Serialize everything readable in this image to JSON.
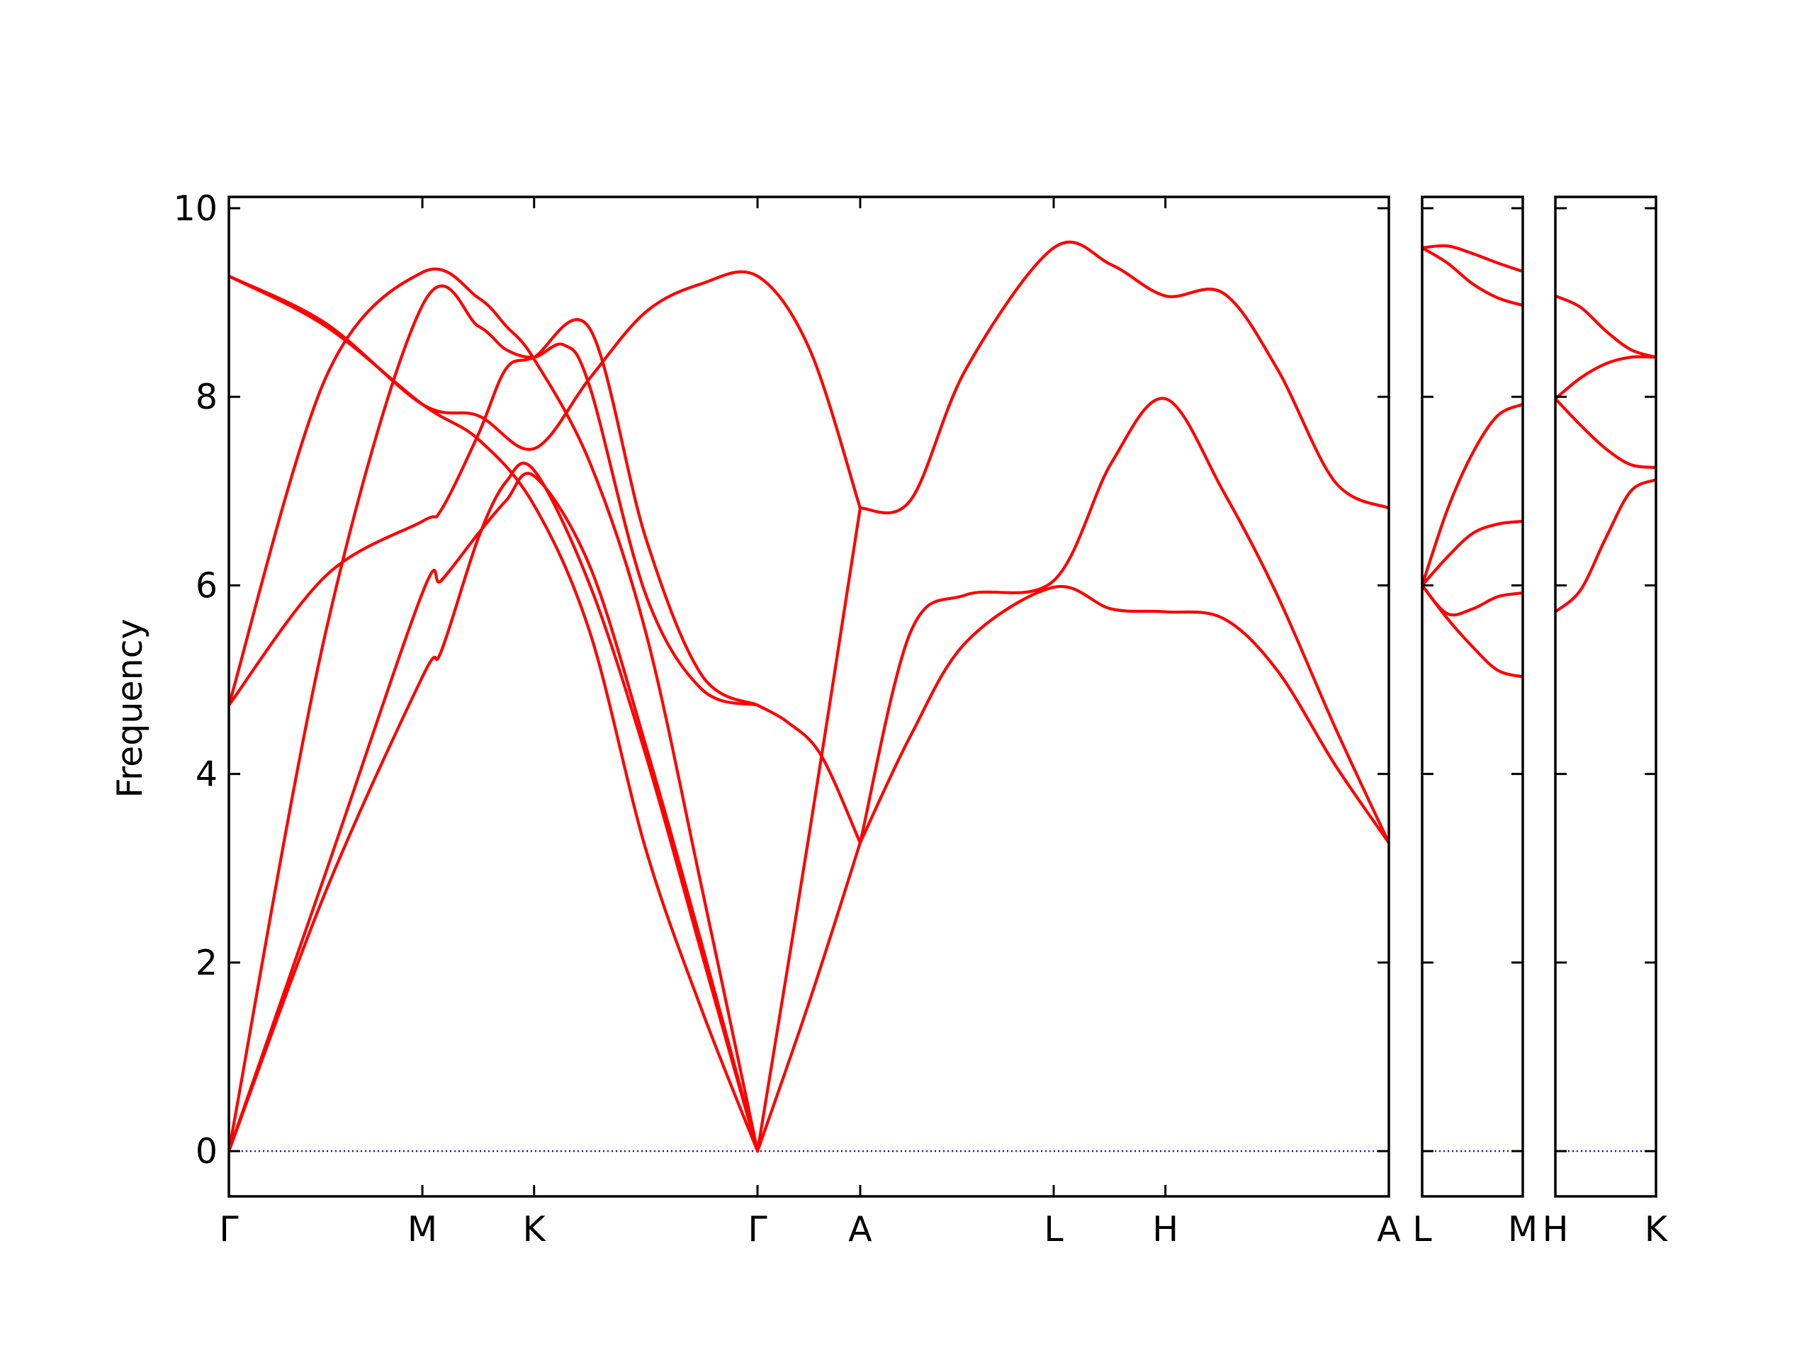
{
  "chart_data": {
    "type": "line",
    "title": "",
    "ylabel": "Frequency",
    "ylim": [
      -0.48,
      10.12
    ],
    "yticks": [
      0,
      2,
      4,
      6,
      8,
      10
    ],
    "y_tick_labels": [
      "0",
      "2",
      "4",
      "6",
      "8",
      "10"
    ],
    "grid": false,
    "band_color": "#ff0000",
    "zero_line_color": "#0000ff",
    "segments": [
      {
        "labels": [
          "Γ",
          "M",
          "K",
          "Γ",
          "A",
          "L",
          "H",
          "A"
        ],
        "positions": [
          0,
          1.732,
          2.732,
          4.732,
          5.651,
          7.383,
          8.383,
          10.383
        ],
        "x_range": [
          0,
          10.383
        ],
        "bands": [
          [
            [
              0,
              0
            ],
            [
              0.866,
              2.75
            ],
            [
              1.732,
              5.03
            ],
            [
              1.9,
              5.3
            ],
            [
              2.232,
              6.5
            ],
            [
              2.482,
              7.1
            ],
            [
              2.732,
              7.22
            ],
            [
              3.232,
              6.0
            ],
            [
              3.732,
              4.2
            ],
            [
              4.232,
              2.1
            ],
            [
              4.732,
              0
            ]
          ],
          [
            [
              0,
              0
            ],
            [
              0.866,
              2.95
            ],
            [
              1.732,
              5.92
            ],
            [
              1.9,
              6.05
            ],
            [
              2.232,
              6.55
            ],
            [
              2.482,
              6.9
            ],
            [
              2.732,
              7.16
            ],
            [
              3.232,
              6.2
            ],
            [
              3.732,
              4.3
            ],
            [
              4.232,
              2.2
            ],
            [
              4.732,
              0
            ]
          ],
          [
            [
              0,
              0
            ],
            [
              0.866,
              5.5
            ],
            [
              1.732,
              8.97
            ],
            [
              2.232,
              8.75
            ],
            [
              2.482,
              8.5
            ],
            [
              2.732,
              8.42
            ],
            [
              3.0,
              8.55
            ],
            [
              3.232,
              8.1
            ],
            [
              3.732,
              5.9
            ],
            [
              4.232,
              4.9
            ],
            [
              4.732,
              4.73
            ]
          ],
          [
            [
              0,
              4.73
            ],
            [
              0.866,
              6.1
            ],
            [
              1.732,
              6.68
            ],
            [
              1.9,
              6.8
            ],
            [
              2.232,
              7.6
            ],
            [
              2.482,
              8.3
            ],
            [
              2.732,
              8.42
            ],
            [
              3.232,
              8.72
            ],
            [
              3.732,
              6.5
            ],
            [
              4.232,
              5.05
            ],
            [
              4.732,
              4.73
            ]
          ],
          [
            [
              0,
              4.73
            ],
            [
              0.866,
              8.2
            ],
            [
              1.732,
              9.32
            ],
            [
              2.232,
              9.05
            ],
            [
              2.482,
              8.75
            ],
            [
              2.732,
              8.4
            ],
            [
              3.232,
              7.3
            ],
            [
              3.732,
              5.5
            ],
            [
              4.232,
              2.8
            ],
            [
              4.732,
              0
            ]
          ],
          [
            [
              0,
              9.28
            ],
            [
              0.866,
              8.75
            ],
            [
              1.732,
              7.92
            ],
            [
              2.232,
              7.55
            ],
            [
              2.732,
              6.85
            ],
            [
              3.232,
              5.5
            ],
            [
              3.732,
              3.2
            ],
            [
              4.232,
              1.5
            ],
            [
              4.732,
              0
            ]
          ],
          [
            [
              0,
              9.28
            ],
            [
              0.866,
              8.78
            ],
            [
              1.732,
              7.92
            ],
            [
              2.232,
              7.8
            ],
            [
              2.732,
              7.45
            ],
            [
              3.232,
              8.2
            ],
            [
              3.732,
              8.9
            ],
            [
              4.232,
              9.2
            ],
            [
              4.732,
              9.28
            ],
            [
              5.2,
              8.5
            ],
            [
              5.651,
              6.82
            ]
          ],
          [
            [
              4.732,
              0
            ],
            [
              5.2,
              1.6
            ],
            [
              5.651,
              3.27
            ]
          ],
          [
            [
              4.732,
              0
            ],
            [
              5.2,
              3.4
            ],
            [
              5.651,
              6.82
            ]
          ],
          [
            [
              4.732,
              4.73
            ],
            [
              5.0,
              4.55
            ],
            [
              5.3,
              4.2
            ],
            [
              5.651,
              3.27
            ]
          ],
          [
            [
              5.651,
              3.27
            ],
            [
              6.1,
              5.5
            ],
            [
              6.6,
              5.9
            ],
            [
              7.383,
              6.05
            ],
            [
              7.9,
              7.3
            ],
            [
              8.383,
              7.98
            ],
            [
              8.9,
              7.0
            ],
            [
              9.383,
              5.9
            ],
            [
              9.9,
              4.5
            ],
            [
              10.383,
              3.27
            ]
          ],
          [
            [
              5.651,
              3.27
            ],
            [
              6.1,
              4.4
            ],
            [
              6.6,
              5.4
            ],
            [
              7.383,
              5.98
            ],
            [
              7.9,
              5.75
            ],
            [
              8.383,
              5.72
            ],
            [
              8.9,
              5.65
            ],
            [
              9.383,
              5.1
            ],
            [
              9.9,
              4.1
            ],
            [
              10.383,
              3.27
            ]
          ],
          [
            [
              5.651,
              6.82
            ],
            [
              6.1,
              6.9
            ],
            [
              6.6,
              8.3
            ],
            [
              7.383,
              9.58
            ],
            [
              7.9,
              9.4
            ],
            [
              8.383,
              9.07
            ],
            [
              8.9,
              9.1
            ],
            [
              9.383,
              8.3
            ],
            [
              9.9,
              7.1
            ],
            [
              10.383,
              6.82
            ]
          ]
        ],
        "zero_line": true
      },
      {
        "labels": [
          "L",
          "M"
        ],
        "positions": [
          0,
          1
        ],
        "x_range": [
          0,
          1
        ],
        "bands": [
          [
            [
              0,
              9.58
            ],
            [
              0.25,
              9.6
            ],
            [
              0.5,
              9.52
            ],
            [
              0.75,
              9.42
            ],
            [
              1,
              9.33
            ]
          ],
          [
            [
              0,
              9.58
            ],
            [
              0.25,
              9.42
            ],
            [
              0.5,
              9.2
            ],
            [
              0.75,
              9.05
            ],
            [
              1,
              8.97
            ]
          ],
          [
            [
              0,
              6.0
            ],
            [
              0.25,
              6.8
            ],
            [
              0.5,
              7.4
            ],
            [
              0.75,
              7.8
            ],
            [
              1,
              7.92
            ]
          ],
          [
            [
              0,
              6.0
            ],
            [
              0.25,
              6.3
            ],
            [
              0.5,
              6.55
            ],
            [
              0.75,
              6.65
            ],
            [
              1,
              6.68
            ]
          ],
          [
            [
              0,
              6.0
            ],
            [
              0.25,
              5.7
            ],
            [
              0.5,
              5.75
            ],
            [
              0.75,
              5.88
            ],
            [
              1,
              5.92
            ]
          ],
          [
            [
              0,
              6.0
            ],
            [
              0.25,
              5.65
            ],
            [
              0.5,
              5.35
            ],
            [
              0.75,
              5.1
            ],
            [
              1,
              5.03
            ]
          ]
        ],
        "zero_line": true
      },
      {
        "labels": [
          "H",
          "K"
        ],
        "positions": [
          0,
          1
        ],
        "x_range": [
          0,
          1
        ],
        "bands": [
          [
            [
              0,
              9.07
            ],
            [
              0.25,
              8.95
            ],
            [
              0.5,
              8.7
            ],
            [
              0.75,
              8.5
            ],
            [
              1,
              8.42
            ]
          ],
          [
            [
              0,
              7.98
            ],
            [
              0.25,
              8.2
            ],
            [
              0.5,
              8.35
            ],
            [
              0.75,
              8.42
            ],
            [
              1,
              8.42
            ]
          ],
          [
            [
              0,
              7.98
            ],
            [
              0.25,
              7.7
            ],
            [
              0.5,
              7.45
            ],
            [
              0.75,
              7.28
            ],
            [
              1,
              7.25
            ]
          ],
          [
            [
              0,
              5.72
            ],
            [
              0.25,
              5.95
            ],
            [
              0.5,
              6.5
            ],
            [
              0.75,
              7.0
            ],
            [
              1,
              7.12
            ]
          ]
        ],
        "zero_line": true
      }
    ]
  }
}
